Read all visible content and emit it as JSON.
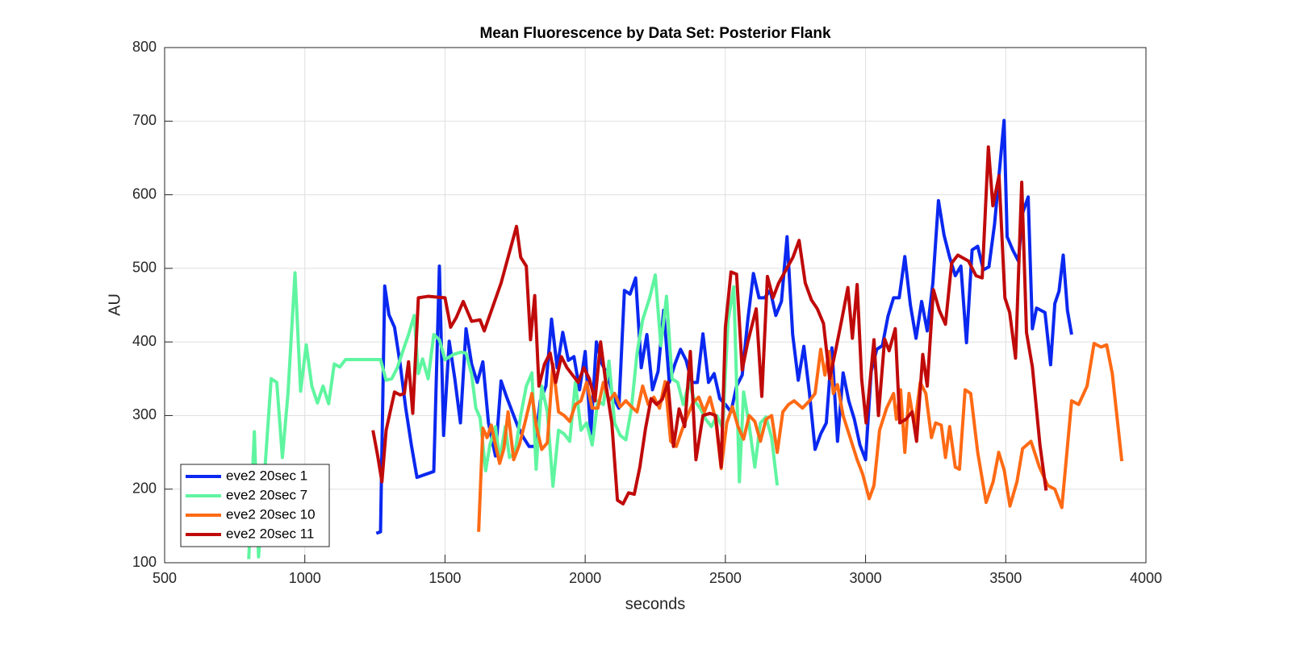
{
  "chart_data": {
    "type": "line",
    "title": "Mean Fluorescence by Data Set: Posterior Flank",
    "xlabel": "seconds",
    "ylabel": "AU",
    "xlim": [
      500,
      4000
    ],
    "xticks": [
      500,
      1000,
      1500,
      2000,
      2500,
      3000,
      3500,
      4000
    ],
    "ylim": [
      100,
      800
    ],
    "yticks": [
      100,
      200,
      300,
      400,
      500,
      600,
      700,
      800
    ],
    "grid": true,
    "legend": "southwest",
    "series": [
      {
        "name": "eve2 20sec 1",
        "color": "#0a28f0",
        "x": [
          1255,
          1270,
          1285,
          1300,
          1320,
          1340,
          1360,
          1380,
          1400,
          1460,
          1480,
          1495,
          1515,
          1535,
          1555,
          1575,
          1595,
          1615,
          1635,
          1655,
          1680,
          1700,
          1720,
          1740,
          1760,
          1780,
          1800,
          1820,
          1840,
          1860,
          1880,
          1900,
          1920,
          1940,
          1960,
          1980,
          2000,
          2020,
          2040,
          2060,
          2080,
          2100,
          2120,
          2140,
          2160,
          2180,
          2200,
          2220,
          2240,
          2260,
          2280,
          2300,
          2320,
          2340,
          2360,
          2380,
          2400,
          2420,
          2440,
          2460,
          2480,
          2500,
          2520,
          2540,
          2560,
          2580,
          2600,
          2620,
          2640,
          2660,
          2680,
          2700,
          2720,
          2740,
          2760,
          2780,
          2800,
          2820,
          2840,
          2860,
          2880,
          2900,
          2920,
          2940,
          2960,
          2980,
          3000,
          3020,
          3040,
          3060,
          3080,
          3100,
          3120,
          3140,
          3160,
          3180,
          3200,
          3220,
          3240,
          3260,
          3280,
          3300,
          3320,
          3340,
          3360,
          3380,
          3400,
          3420,
          3440,
          3460,
          3494,
          3505,
          3525,
          3545,
          3560,
          3580,
          3595,
          3610,
          3640,
          3660,
          3675,
          3690,
          3705,
          3720,
          3735
        ],
        "values": [
          140,
          142,
          476,
          437,
          420,
          370,
          310,
          260,
          216,
          224,
          503,
          273,
          401,
          350,
          290,
          418,
          370,
          345,
          373,
          290,
          245,
          347,
          325,
          305,
          285,
          270,
          258,
          258,
          320,
          340,
          431,
          365,
          413,
          375,
          380,
          335,
          387,
          275,
          400,
          370,
          355,
          325,
          310,
          470,
          465,
          487,
          365,
          410,
          335,
          360,
          443,
          345,
          370,
          390,
          375,
          345,
          345,
          411,
          345,
          357,
          323,
          315,
          305,
          340,
          355,
          430,
          493,
          460,
          460,
          470,
          436,
          455,
          543,
          410,
          348,
          394,
          330,
          254,
          275,
          290,
          392,
          265,
          358,
          320,
          295,
          260,
          240,
          360,
          390,
          395,
          435,
          460,
          460,
          516,
          450,
          405,
          455,
          415,
          480,
          592,
          545,
          515,
          490,
          503,
          399,
          525,
          530,
          498,
          502,
          560,
          701,
          543,
          525,
          510,
          575,
          597,
          418,
          446,
          440,
          369,
          452,
          469,
          518,
          443,
          410
        ]
      },
      {
        "name": "eve2 20sec 7",
        "color": "#5ff5a0",
        "x": [
          800,
          820,
          835,
          860,
          880,
          900,
          920,
          940,
          965,
          985,
          1005,
          1025,
          1045,
          1065,
          1085,
          1105,
          1125,
          1145,
          1200,
          1270,
          1290,
          1310,
          1330,
          1350,
          1370,
          1390,
          1405,
          1420,
          1440,
          1460,
          1480,
          1500,
          1530,
          1555,
          1575,
          1595,
          1610,
          1625,
          1645,
          1660,
          1680,
          1695,
          1715,
          1730,
          1750,
          1770,
          1790,
          1810,
          1825,
          1845,
          1865,
          1885,
          1905,
          1925,
          1945,
          1965,
          1985,
          2005,
          2025,
          2045,
          2065,
          2085,
          2105,
          2125,
          2145,
          2165,
          2185,
          2205,
          2230,
          2250,
          2270,
          2290,
          2310,
          2330,
          2350,
          2370,
          2390,
          2410,
          2430,
          2450,
          2470,
          2490,
          2510,
          2530,
          2550,
          2565,
          2585,
          2605,
          2625,
          2645,
          2665,
          2685
        ],
        "values": [
          105,
          278,
          108,
          240,
          350,
          345,
          243,
          330,
          494,
          333,
          396,
          340,
          317,
          340,
          316,
          370,
          366,
          376,
          376,
          376,
          348,
          350,
          365,
          388,
          410,
          436,
          357,
          377,
          350,
          410,
          403,
          376,
          383,
          386,
          385,
          356,
          310,
          297,
          225,
          260,
          285,
          240,
          285,
          243,
          250,
          300,
          340,
          358,
          227,
          340,
          305,
          204,
          280,
          275,
          265,
          345,
          280,
          290,
          260,
          320,
          315,
          374,
          290,
          273,
          267,
          310,
          385,
          430,
          460,
          491,
          395,
          462,
          350,
          345,
          315,
          345,
          320,
          310,
          295,
          285,
          300,
          283,
          430,
          475,
          210,
          332,
          287,
          230,
          290,
          298,
          270,
          205
        ]
      },
      {
        "name": "eve2 20sec 10",
        "color": "#ff6a14",
        "x": [
          1620,
          1635,
          1650,
          1665,
          1680,
          1695,
          1710,
          1725,
          1745,
          1765,
          1785,
          1810,
          1825,
          1845,
          1865,
          1885,
          1905,
          1925,
          1945,
          1965,
          1985,
          2005,
          2025,
          2045,
          2065,
          2085,
          2105,
          2125,
          2145,
          2165,
          2185,
          2205,
          2225,
          2245,
          2265,
          2285,
          2305,
          2325,
          2345,
          2365,
          2385,
          2405,
          2425,
          2445,
          2465,
          2485,
          2505,
          2525,
          2545,
          2565,
          2585,
          2605,
          2625,
          2645,
          2665,
          2685,
          2705,
          2725,
          2745,
          2775,
          2800,
          2820,
          2840,
          2855,
          2870,
          2885,
          2900,
          2920,
          2945,
          2970,
          2990,
          3013,
          3030,
          3050,
          3075,
          3100,
          3110,
          3125,
          3140,
          3155,
          3175,
          3195,
          3215,
          3235,
          3250,
          3270,
          3285,
          3300,
          3320,
          3335,
          3355,
          3375,
          3400,
          3430,
          3455,
          3475,
          3495,
          3515,
          3540,
          3560,
          3590,
          3620,
          3650,
          3675,
          3700,
          3735,
          3760,
          3790,
          3815,
          3840,
          3860,
          3880,
          3914
        ],
        "values": [
          142,
          283,
          270,
          287,
          260,
          235,
          255,
          305,
          240,
          260,
          290,
          330,
          287,
          254,
          263,
          370,
          305,
          300,
          292,
          315,
          320,
          345,
          310,
          310,
          345,
          320,
          330,
          312,
          320,
          312,
          305,
          340,
          315,
          325,
          310,
          346,
          265,
          258,
          280,
          300,
          318,
          325,
          305,
          325,
          295,
          228,
          290,
          312,
          285,
          268,
          300,
          292,
          265,
          295,
          300,
          250,
          305,
          315,
          320,
          310,
          320,
          330,
          390,
          355,
          387,
          330,
          342,
          300,
          270,
          240,
          220,
          187,
          205,
          280,
          310,
          330,
          295,
          335,
          250,
          330,
          285,
          345,
          330,
          270,
          290,
          287,
          243,
          285,
          230,
          227,
          335,
          330,
          250,
          182,
          210,
          250,
          225,
          177,
          210,
          255,
          265,
          230,
          205,
          200,
          175,
          320,
          315,
          340,
          398,
          393,
          396,
          357,
          238
        ]
      },
      {
        "name": "eve2 20sec 11",
        "color": "#c00a0a",
        "x": [
          1243,
          1260,
          1275,
          1290,
          1320,
          1340,
          1355,
          1370,
          1385,
          1405,
          1440,
          1470,
          1500,
          1520,
          1540,
          1565,
          1595,
          1625,
          1640,
          1700,
          1755,
          1770,
          1790,
          1805,
          1820,
          1835,
          1855,
          1875,
          1895,
          1915,
          1935,
          1955,
          1975,
          1995,
          2015,
          2035,
          2055,
          2075,
          2095,
          2115,
          2135,
          2155,
          2175,
          2195,
          2215,
          2235,
          2255,
          2275,
          2295,
          2315,
          2335,
          2355,
          2375,
          2395,
          2420,
          2445,
          2465,
          2485,
          2500,
          2520,
          2540,
          2560,
          2580,
          2610,
          2630,
          2650,
          2670,
          2690,
          2741,
          2763,
          2785,
          2807,
          2828,
          2850,
          2872,
          2894,
          2915,
          2937,
          2953,
          2970,
          2986,
          3002,
          3030,
          3046,
          3068,
          3084,
          3106,
          3122,
          3144,
          3166,
          3182,
          3204,
          3220,
          3242,
          3263,
          3285,
          3307,
          3329,
          3367,
          3394,
          3416,
          3438,
          3454,
          3476,
          3497,
          3514,
          3535,
          3557,
          3574,
          3595,
          3622,
          3644
        ],
        "values": [
          280,
          245,
          210,
          280,
          332,
          328,
          330,
          373,
          303,
          460,
          462,
          461,
          460,
          420,
          433,
          455,
          428,
          430,
          415,
          480,
          557,
          515,
          503,
          403,
          463,
          340,
          370,
          385,
          345,
          380,
          365,
          355,
          345,
          365,
          350,
          320,
          400,
          340,
          290,
          185,
          180,
          195,
          193,
          230,
          282,
          323,
          315,
          322,
          345,
          258,
          309,
          285,
          387,
          240,
          300,
          303,
          300,
          230,
          420,
          495,
          492,
          362,
          400,
          445,
          326,
          489,
          460,
          480,
          515,
          538,
          480,
          457,
          445,
          425,
          350,
          390,
          430,
          474,
          405,
          478,
          350,
          290,
          403,
          300,
          404,
          388,
          418,
          290,
          295,
          305,
          265,
          383,
          340,
          471,
          443,
          424,
          507,
          518,
          510,
          490,
          487,
          665,
          585,
          626,
          460,
          440,
          378,
          617,
          413,
          366,
          260,
          198
        ]
      }
    ]
  }
}
